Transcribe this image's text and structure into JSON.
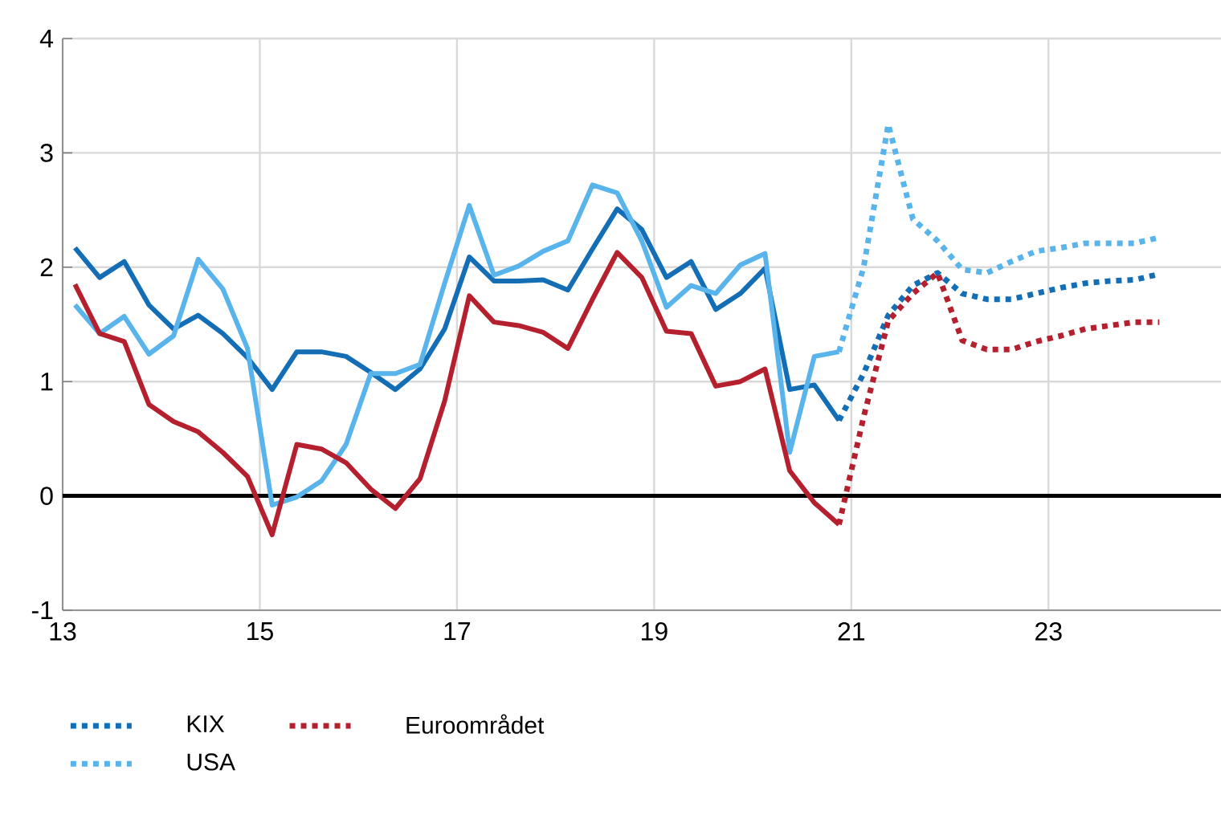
{
  "chart_data": {
    "type": "line",
    "xlim": [
      13,
      24.75
    ],
    "ylim": [
      -1,
      4
    ],
    "xticks": [
      13,
      15,
      17,
      19,
      21,
      23
    ],
    "yticks": [
      -1,
      0,
      1,
      2,
      3,
      4
    ],
    "grid": true,
    "legend": "bottom",
    "ref_lines": [
      {
        "axis": "y",
        "value": 0,
        "color": "#000000"
      }
    ],
    "series": [
      {
        "color": "#136eb5",
        "line_style": "solid",
        "x": [
          13.125,
          13.375,
          13.625,
          13.875,
          14.125,
          14.375,
          14.625,
          14.875,
          15.125,
          15.375,
          15.625,
          15.875,
          16.125,
          16.375,
          16.625,
          16.875,
          17.125,
          17.375,
          17.625,
          17.875,
          18.125,
          18.375,
          18.625,
          18.875,
          19.125,
          19.375,
          19.625,
          19.875,
          20.125,
          20.375,
          20.625,
          20.875
        ],
        "values": [
          2.17,
          1.91,
          2.05,
          1.67,
          1.46,
          1.58,
          1.42,
          1.21,
          0.93,
          1.26,
          1.26,
          1.22,
          1.08,
          0.93,
          1.11,
          1.46,
          2.09,
          1.88,
          1.88,
          1.89,
          1.8,
          2.16,
          2.51,
          2.33,
          1.91,
          2.05,
          1.63,
          1.77,
          1.99,
          0.93,
          0.97,
          0.66
        ]
      },
      {
        "color": "#5ab4ec",
        "line_style": "solid",
        "x": [
          13.125,
          13.375,
          13.625,
          13.875,
          14.125,
          14.375,
          14.625,
          14.875,
          15.125,
          15.375,
          15.625,
          15.875,
          16.125,
          16.375,
          16.625,
          16.875,
          17.125,
          17.375,
          17.625,
          17.875,
          18.125,
          18.375,
          18.625,
          18.875,
          19.125,
          19.375,
          19.625,
          19.875,
          20.125,
          20.375,
          20.625,
          20.875
        ],
        "values": [
          1.67,
          1.42,
          1.57,
          1.24,
          1.4,
          2.07,
          1.81,
          1.29,
          -0.08,
          -0.01,
          0.13,
          0.45,
          1.07,
          1.07,
          1.15,
          1.86,
          2.54,
          1.93,
          2.01,
          2.14,
          2.23,
          2.72,
          2.65,
          2.23,
          1.65,
          1.84,
          1.77,
          2.02,
          2.12,
          0.38,
          1.22,
          1.26
        ]
      },
      {
        "color": "#b5202e",
        "line_style": "solid",
        "x": [
          13.125,
          13.375,
          13.625,
          13.875,
          14.125,
          14.375,
          14.625,
          14.875,
          15.125,
          15.375,
          15.625,
          15.875,
          16.125,
          16.375,
          16.625,
          16.875,
          17.125,
          17.375,
          17.625,
          17.875,
          18.125,
          18.375,
          18.625,
          18.875,
          19.125,
          19.375,
          19.625,
          19.875,
          20.125,
          20.375,
          20.625,
          20.875
        ],
        "values": [
          1.85,
          1.42,
          1.35,
          0.8,
          0.65,
          0.56,
          0.38,
          0.17,
          -0.34,
          0.45,
          0.41,
          0.29,
          0.06,
          -0.11,
          0.15,
          0.83,
          1.75,
          1.52,
          1.49,
          1.43,
          1.29,
          1.72,
          2.13,
          1.91,
          1.44,
          1.42,
          0.96,
          1.0,
          1.11,
          0.22,
          -0.06,
          -0.25
        ]
      },
      {
        "name": "KIX",
        "color": "#136eb5",
        "line_style": "dotted",
        "x": [
          20.875,
          21.125,
          21.375,
          21.625,
          21.875,
          22.125,
          22.375,
          22.625,
          22.875,
          23.125,
          23.375,
          23.625,
          23.875,
          24.125
        ],
        "values": [
          0.66,
          1.07,
          1.58,
          1.84,
          1.95,
          1.77,
          1.72,
          1.72,
          1.77,
          1.82,
          1.86,
          1.88,
          1.89,
          1.94
        ]
      },
      {
        "name": "Euroområdet",
        "color": "#b5202e",
        "line_style": "dotted",
        "x": [
          20.875,
          21.125,
          21.375,
          21.625,
          21.875,
          22.125,
          22.375,
          22.625,
          22.875,
          23.125,
          23.375,
          23.625,
          23.875,
          24.125
        ],
        "values": [
          -0.25,
          0.69,
          1.53,
          1.77,
          1.95,
          1.36,
          1.28,
          1.28,
          1.35,
          1.4,
          1.46,
          1.49,
          1.52,
          1.52
        ]
      },
      {
        "name": "USA",
        "color": "#5ab4ec",
        "line_style": "dotted",
        "x": [
          20.875,
          21.125,
          21.375,
          21.625,
          21.875,
          22.125,
          22.375,
          22.625,
          22.875,
          23.125,
          23.375,
          23.625,
          23.875,
          24.125
        ],
        "values": [
          1.26,
          2.0,
          3.25,
          2.42,
          2.23,
          1.98,
          1.95,
          2.05,
          2.14,
          2.17,
          2.21,
          2.21,
          2.21,
          2.26
        ]
      }
    ]
  }
}
